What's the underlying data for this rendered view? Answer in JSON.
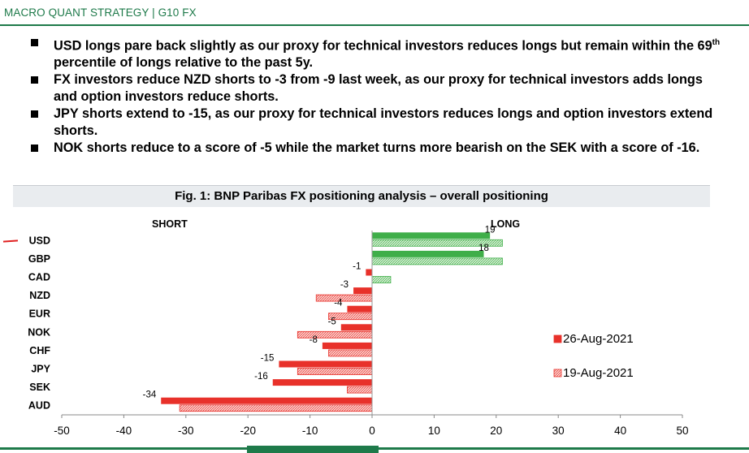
{
  "header": {
    "title": "MACRO QUANT STRATEGY | G10 FX"
  },
  "bullets": [
    {
      "before": "USD longs pare back slightly as our proxy for technical investors reduces longs but remain within the 69",
      "sup": "th",
      "after": " percentile of longs relative to the past 5y."
    },
    {
      "text": "FX investors reduce NZD shorts to -3 from -9 last week, as our proxy for technical investors adds longs and option investors reduce shorts."
    },
    {
      "text": "JPY shorts extend to -15, as our proxy for technical investors reduces longs and option investors extend shorts."
    },
    {
      "text": "NOK shorts reduce to a score of -5 while the market turns more bearish on the SEK with a score of -16."
    }
  ],
  "figure": {
    "title": "Fig. 1: BNP Paribas FX positioning analysis – overall positioning",
    "short_label": "SHORT",
    "long_label": "LONG"
  },
  "colors": {
    "current_negative": "#e8312a",
    "current_positive": "#3fae49",
    "prior_negative_fill": "#f7b5b2",
    "prior_positive_fill": "#b9e3b6",
    "brand_green": "#1e7a4a"
  },
  "chart_data": {
    "type": "bar",
    "orientation": "horizontal",
    "categories": [
      "USD",
      "GBP",
      "CAD",
      "NZD",
      "EUR",
      "NOK",
      "CHF",
      "JPY",
      "SEK",
      "AUD"
    ],
    "series": [
      {
        "name": "26-Aug-2021",
        "values": [
          19,
          18,
          -1,
          -3,
          -4,
          -5,
          -8,
          -15,
          -16,
          -34
        ],
        "labels": [
          "19",
          "18",
          "-1",
          "-3",
          "-4",
          "-5",
          "-8",
          "-15",
          "-16",
          "-34"
        ]
      },
      {
        "name": "19-Aug-2021",
        "values": [
          21,
          21,
          3,
          -9,
          -7,
          -12,
          -7,
          -12,
          -4,
          -31
        ]
      }
    ],
    "xlim": [
      -50,
      50
    ],
    "xticks": [
      -50,
      -40,
      -30,
      -20,
      -10,
      0,
      10,
      20,
      30,
      40,
      50
    ],
    "legend_position": "right"
  }
}
